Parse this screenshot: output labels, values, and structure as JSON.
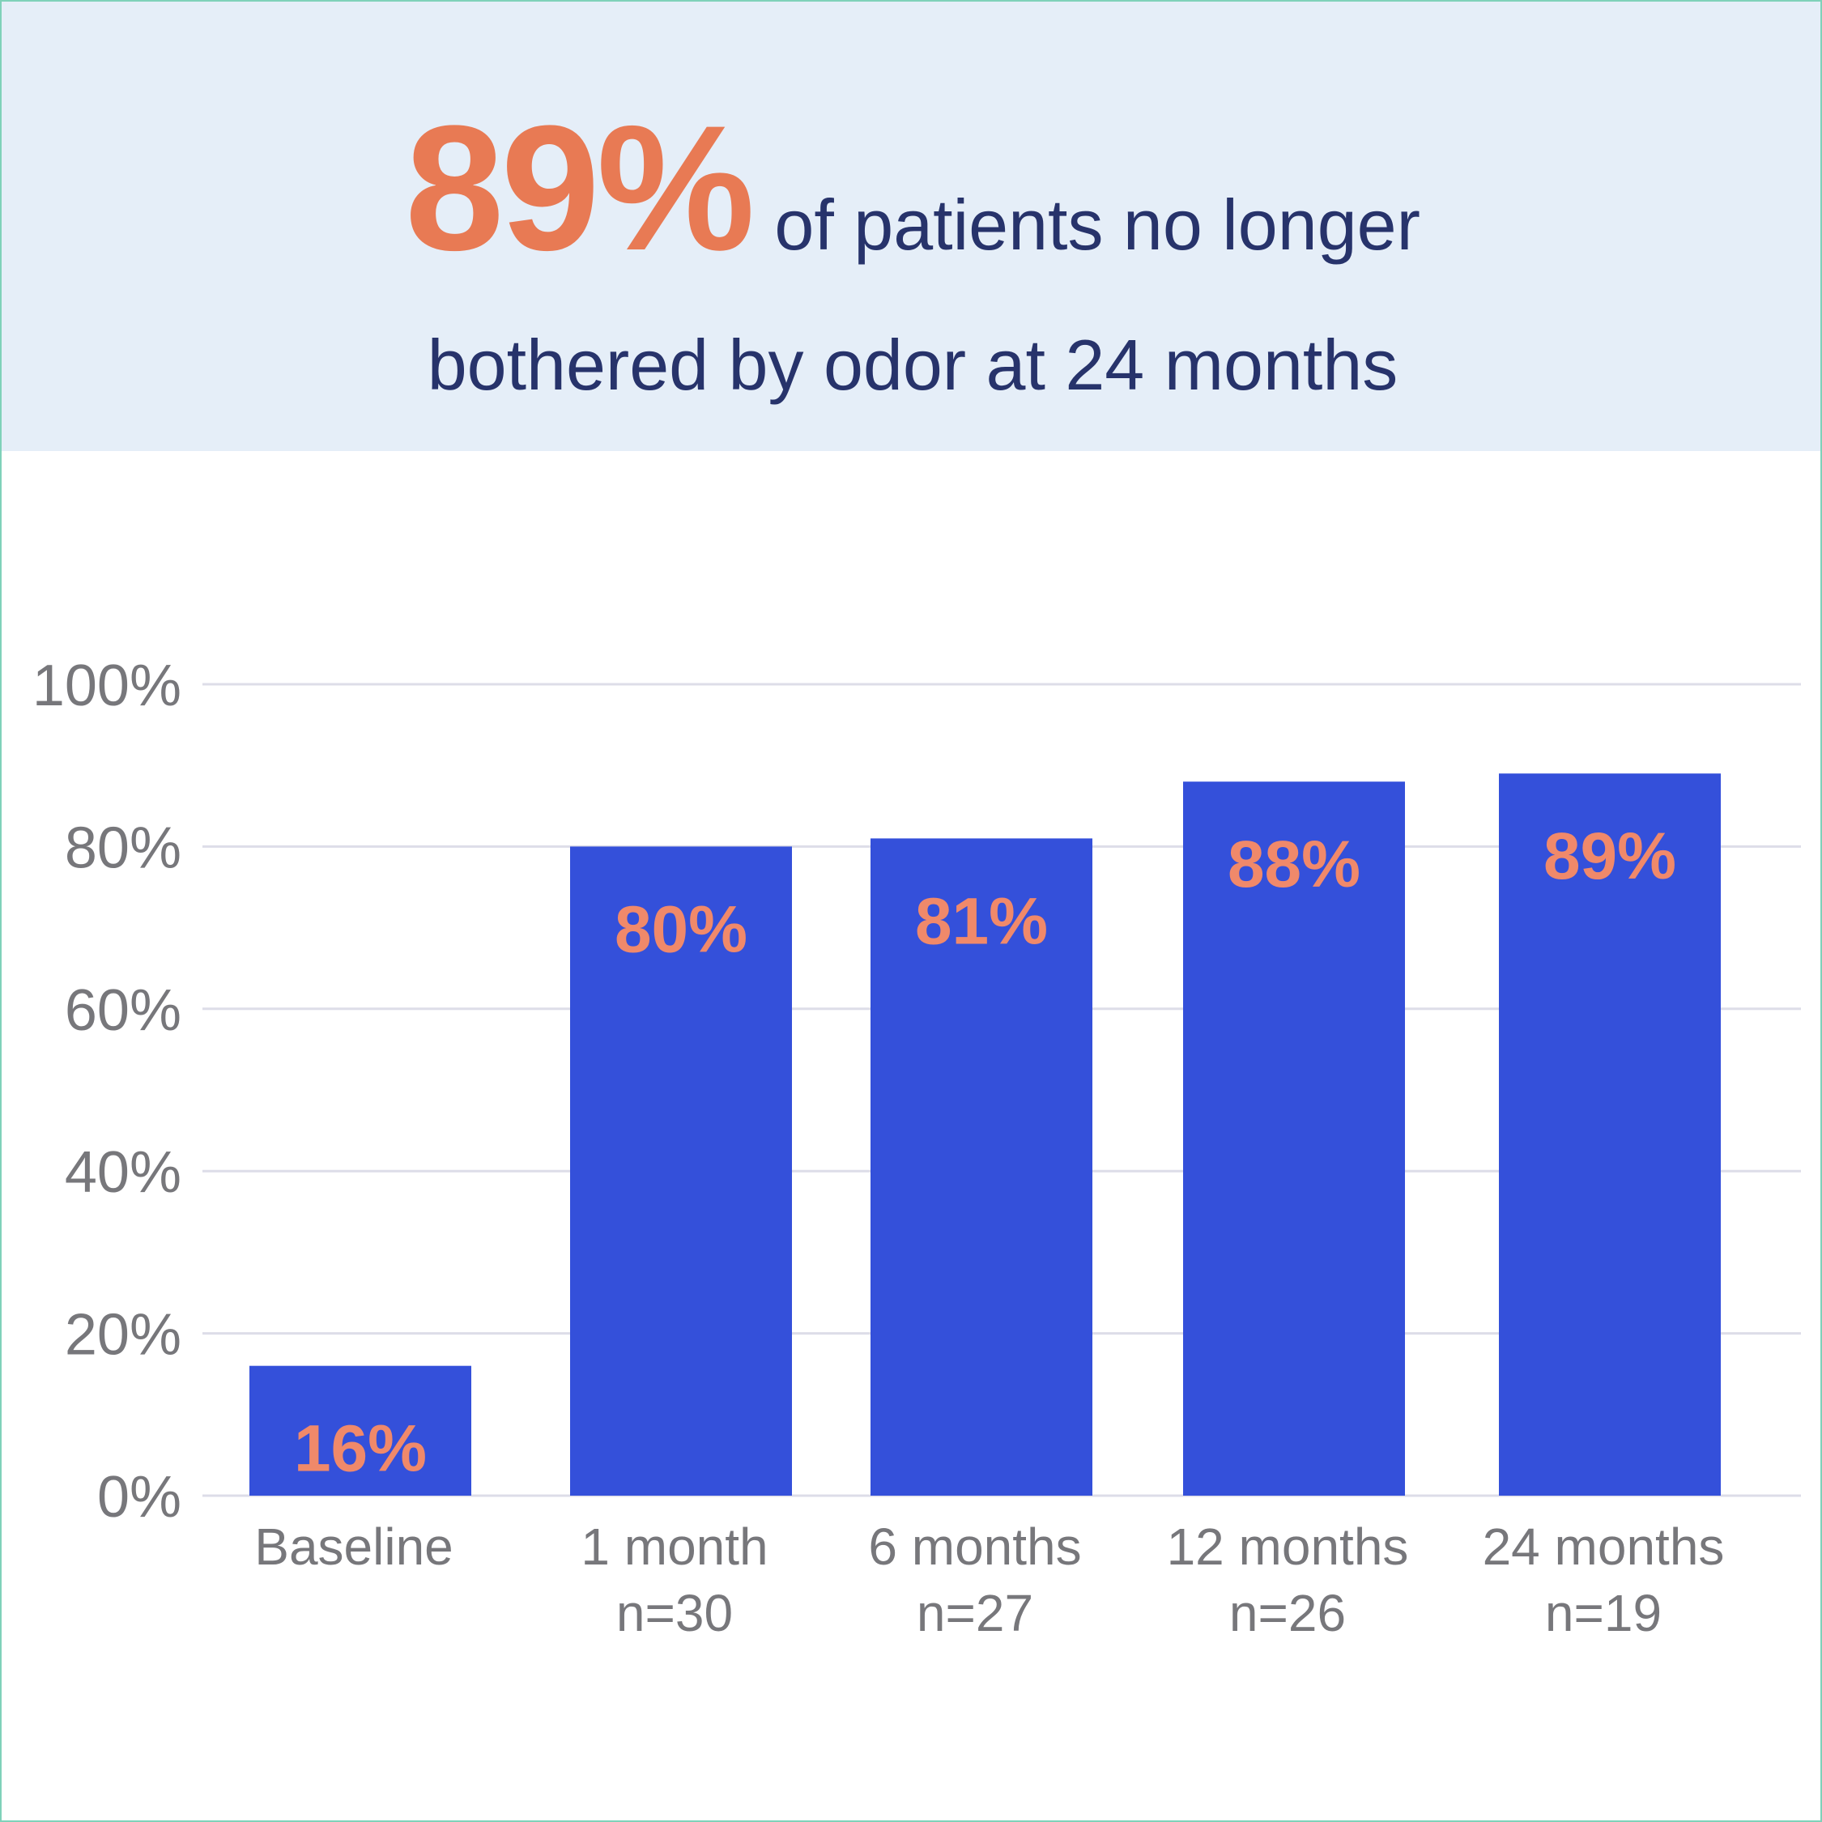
{
  "headline": {
    "big_stat": "89%",
    "line1_rest": "of patients no longer",
    "line2": "bothered by odor at 24 months"
  },
  "colors": {
    "header_bg": "#e5eef8",
    "bar": "#3450da",
    "value_label": "#f0896a",
    "headline_accent": "#e87a54",
    "headline_text": "#27336b",
    "axis_text": "#77777b",
    "grid": "#dddde8",
    "frame_border": "#7fd1b9"
  },
  "chart_data": {
    "type": "bar",
    "categories": [
      "Baseline",
      "1 month",
      "6 months",
      "12 months",
      "24 months"
    ],
    "sublabels": [
      "",
      "n=30",
      "n=27",
      "n=26",
      "n=19"
    ],
    "values": [
      16,
      80,
      81,
      88,
      89
    ],
    "value_labels": [
      "16%",
      "80%",
      "81%",
      "88%",
      "89%"
    ],
    "y_ticks": [
      "0%",
      "20%",
      "40%",
      "60%",
      "80%",
      "100%"
    ],
    "ylim": [
      0,
      100
    ],
    "grid": true,
    "title": "",
    "xlabel": "",
    "ylabel": ""
  }
}
